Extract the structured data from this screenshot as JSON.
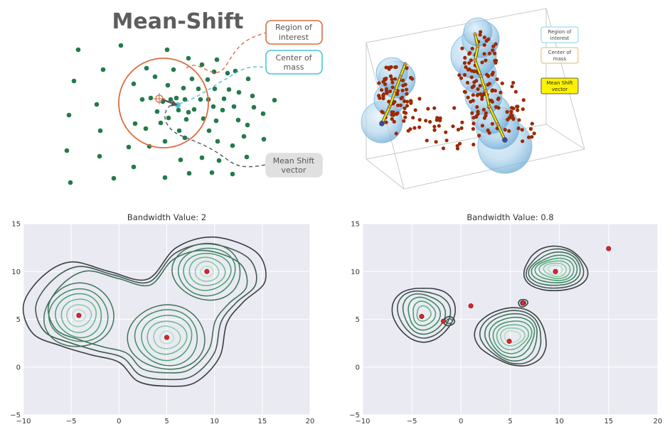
{
  "diagram": {
    "title": "Mean-Shift",
    "callouts": {
      "region": [
        "Region of",
        "interest"
      ],
      "center": [
        "Center of",
        "mass"
      ],
      "vector": [
        "Mean Shift",
        "vector"
      ]
    },
    "colors": {
      "point": "#237a4a",
      "region": "#de6b3f",
      "center": "#4ac6d4",
      "vector": "#555555"
    },
    "scatter": [
      [
        110,
        70
      ],
      [
        170,
        64
      ],
      [
        145,
        98
      ],
      [
        104,
        114
      ],
      [
        136,
        147
      ],
      [
        97,
        162
      ],
      [
        141,
        184
      ],
      [
        94,
        212
      ],
      [
        140,
        220
      ],
      [
        99,
        257
      ],
      [
        160,
        251
      ],
      [
        188,
        235
      ],
      [
        181,
        207
      ],
      [
        210,
        206
      ],
      [
        235,
        70
      ],
      [
        265,
        82
      ],
      [
        206,
        96
      ],
      [
        218,
        108
      ],
      [
        244,
        98
      ],
      [
        236,
        120
      ],
      [
        284,
        91
      ],
      [
        301,
        101
      ],
      [
        305,
        84
      ],
      [
        320,
        103
      ],
      [
        331,
        100
      ],
      [
        349,
        111
      ],
      [
        355,
        135
      ],
      [
        370,
        160
      ],
      [
        386,
        141
      ],
      [
        371,
        196
      ],
      [
        343,
        192
      ],
      [
        327,
        205
      ],
      [
        306,
        199
      ],
      [
        294,
        184
      ],
      [
        252,
        184
      ],
      [
        262,
        168
      ],
      [
        273,
        154
      ],
      [
        282,
        140
      ],
      [
        293,
        140
      ],
      [
        300,
        150
      ],
      [
        313,
        155
      ],
      [
        329,
        150
      ],
      [
        315,
        139
      ],
      [
        322,
        126
      ],
      [
        336,
        130
      ],
      [
        302,
        125
      ],
      [
        292,
        112
      ],
      [
        279,
        125
      ],
      [
        270,
        111
      ],
      [
        258,
        124
      ],
      [
        248,
        138
      ],
      [
        260,
        140
      ],
      [
        265,
        158
      ],
      [
        251,
        155
      ],
      [
        237,
        166
      ],
      [
        226,
        173
      ],
      [
        221,
        157
      ],
      [
        212,
        138
      ],
      [
        229,
        143
      ],
      [
        240,
        140
      ],
      [
        200,
        140
      ],
      [
        188,
        118
      ],
      [
        232,
        199
      ],
      [
        254,
        225
      ],
      [
        266,
        244
      ],
      [
        298,
        243
      ],
      [
        308,
        226
      ],
      [
        284,
        222
      ],
      [
        327,
        245
      ],
      [
        347,
        221
      ],
      [
        232,
        250
      ],
      [
        190,
        174
      ],
      [
        205,
        181
      ],
      [
        260,
        194
      ],
      [
        286,
        167
      ],
      [
        304,
        170
      ],
      [
        335,
        169
      ],
      [
        348,
        176
      ],
      [
        357,
        151
      ]
    ]
  },
  "panel3d": {
    "legend": {
      "region": [
        "Region of",
        "interest"
      ],
      "center": [
        "Center of",
        "mass"
      ],
      "vector": [
        "Mean Shift",
        "vector"
      ]
    },
    "colors": {
      "point": "#9a2a05",
      "bubble": "#7fb7dd",
      "path": "#f2e600",
      "legend_vector_bg": "#fff200"
    }
  },
  "chart_data": [
    {
      "type": "contour",
      "title": "Bandwidth Value: 2",
      "xlim": [
        -10,
        20
      ],
      "ylim": [
        -5,
        15
      ],
      "x_ticks": [
        "−10",
        "−5",
        "0",
        "5",
        "10",
        "15",
        "20"
      ],
      "y_ticks": [
        "−5",
        "0",
        "5",
        "10",
        "15"
      ],
      "cluster_centers": [
        [
          -4.2,
          5.4
        ],
        [
          5.0,
          3.1
        ],
        [
          9.2,
          10.0
        ]
      ],
      "num_contour_levels": 8
    },
    {
      "type": "contour",
      "title": "Bandwidth Value: 0.8",
      "xlim": [
        -10,
        20
      ],
      "ylim": [
        -5,
        15
      ],
      "x_ticks": [
        "−10",
        "−5",
        "0",
        "5",
        "10",
        "15",
        "20"
      ],
      "y_ticks": [
        "−5",
        "0",
        "5",
        "10",
        "15"
      ],
      "cluster_centers": [
        [
          -4.0,
          5.3
        ],
        [
          -1.8,
          4.8
        ],
        [
          1.0,
          6.4
        ],
        [
          4.9,
          2.7
        ],
        [
          6.3,
          6.7
        ],
        [
          9.6,
          10.0
        ],
        [
          15.0,
          12.4
        ]
      ],
      "num_contour_levels": 8
    }
  ]
}
